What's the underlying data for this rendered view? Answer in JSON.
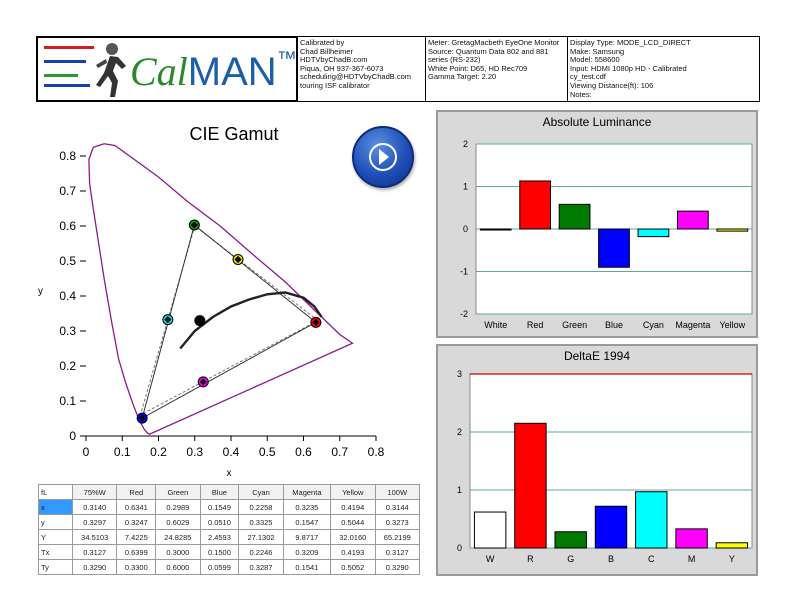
{
  "header": {
    "logo": {
      "text_a": "Cal",
      "text_b": "MAN",
      "tm": "™",
      "bar_colors": [
        "#d11f1f",
        "#1a3fb5",
        "#2a9a2a"
      ]
    },
    "info_1": [
      "Calibrated by",
      "Chad Billheimer",
      "HDTVbyChadB.com",
      "Piqua, OH 937-367-6073",
      "scheduling@HDTVbyChadB.com",
      "touring ISF calibrator"
    ],
    "info_2": [
      "Meter: GretagMacbeth EyeOne Monitor",
      "Source: Quantum Data 802 and 881",
      "series (RS-232)",
      "White Point: D65, HD Rec709",
      "Gamma Target: 2.20"
    ],
    "info_3": [
      "Display Type: MODE_LCD_DIRECT",
      "Make: Samsung",
      "Model: 558600",
      "Input: HDMI 1080p HD   -   Calibrated",
      "cy_test.cdf",
      "Viewing Distance(ft): 106",
      "Notes:"
    ]
  },
  "play_button": {
    "icon": "play-icon"
  },
  "chart_data": [
    {
      "type": "scatter",
      "title": "CIE Gamut",
      "xlabel": "x",
      "ylabel": "y",
      "xlim": [
        0,
        0.8
      ],
      "ylim": [
        0,
        0.8
      ],
      "xticks": [
        "0",
        "0.1",
        "0.2",
        "0.3",
        "0.4",
        "0.5",
        "0.6",
        "0.7",
        "0.8"
      ],
      "yticks": [
        "0",
        "0.1",
        "0.2",
        "0.3",
        "0.4",
        "0.5",
        "0.6",
        "0.7",
        "0.8"
      ],
      "locus_color": "#8b1a8b",
      "locus": [
        [
          0.175,
          0.005
        ],
        [
          0.17,
          0.008
        ],
        [
          0.16,
          0.02
        ],
        [
          0.145,
          0.05
        ],
        [
          0.13,
          0.09
        ],
        [
          0.11,
          0.15
        ],
        [
          0.09,
          0.22
        ],
        [
          0.07,
          0.33
        ],
        [
          0.05,
          0.45
        ],
        [
          0.035,
          0.55
        ],
        [
          0.02,
          0.65
        ],
        [
          0.01,
          0.72
        ],
        [
          0.008,
          0.79
        ],
        [
          0.02,
          0.825
        ],
        [
          0.05,
          0.835
        ],
        [
          0.08,
          0.83
        ],
        [
          0.12,
          0.8
        ],
        [
          0.2,
          0.74
        ],
        [
          0.28,
          0.67
        ],
        [
          0.37,
          0.6
        ],
        [
          0.47,
          0.51
        ],
        [
          0.55,
          0.44
        ],
        [
          0.62,
          0.37
        ],
        [
          0.67,
          0.32
        ],
        [
          0.7,
          0.29
        ],
        [
          0.735,
          0.265
        ]
      ],
      "target_triangle": [
        [
          0.64,
          0.33
        ],
        [
          0.3,
          0.6
        ],
        [
          0.15,
          0.06
        ]
      ],
      "measured_triangle": [
        [
          0.6341,
          0.3247
        ],
        [
          0.2989,
          0.6029
        ],
        [
          0.1549,
          0.051
        ]
      ],
      "planckian": [
        [
          0.26,
          0.25
        ],
        [
          0.3,
          0.3
        ],
        [
          0.35,
          0.34
        ],
        [
          0.4,
          0.37
        ],
        [
          0.45,
          0.39
        ],
        [
          0.5,
          0.405
        ],
        [
          0.55,
          0.41
        ],
        [
          0.6,
          0.395
        ],
        [
          0.63,
          0.37
        ],
        [
          0.65,
          0.34
        ]
      ],
      "points": [
        {
          "name": "White",
          "color": "#000000",
          "x": 0.314,
          "y": 0.3297
        },
        {
          "name": "Red",
          "color": "#ff0000",
          "x": 0.6341,
          "y": 0.3247
        },
        {
          "name": "Green",
          "color": "#00a000",
          "x": 0.2989,
          "y": 0.6029
        },
        {
          "name": "Blue",
          "color": "#0000ff",
          "x": 0.1549,
          "y": 0.051
        },
        {
          "name": "Cyan",
          "color": "#00e0e0",
          "x": 0.2258,
          "y": 0.3325
        },
        {
          "name": "Magenta",
          "color": "#ff00ff",
          "x": 0.3235,
          "y": 0.1547
        },
        {
          "name": "Yellow",
          "color": "#e0e000",
          "x": 0.4194,
          "y": 0.5044
        }
      ]
    },
    {
      "type": "bar",
      "title": "Absolute Luminance",
      "categories": [
        "White",
        "Red",
        "Green",
        "Blue",
        "Cyan",
        "Magenta",
        "Yellow"
      ],
      "values": [
        0.0,
        1.13,
        0.58,
        -0.9,
        -0.18,
        0.42,
        -0.05
      ],
      "colors": [
        "#ffffff",
        "#ff0000",
        "#007a00",
        "#0000ff",
        "#00ffff",
        "#ff00ff",
        "#ffff00"
      ],
      "ylim": [
        -2,
        2
      ],
      "yticks": [
        "-2",
        "-1",
        "0",
        "1",
        "2"
      ]
    },
    {
      "type": "bar",
      "title": "DeltaE 1994",
      "categories": [
        "W",
        "R",
        "G",
        "B",
        "C",
        "M",
        "Y"
      ],
      "values": [
        0.62,
        2.15,
        0.28,
        0.72,
        0.97,
        0.33,
        0.09
      ],
      "colors": [
        "#ffffff",
        "#ff0000",
        "#007a00",
        "#0000ff",
        "#00ffff",
        "#ff00ff",
        "#ffff00"
      ],
      "ylim": [
        0,
        3
      ],
      "yticks": [
        "0",
        "1",
        "2",
        "3"
      ],
      "threshold_color": "#cc0000"
    }
  ],
  "table": {
    "corner": "fL",
    "columns": [
      "75%W",
      "Red",
      "Green",
      "Blue",
      "Cyan",
      "Magenta",
      "Yellow",
      "100W"
    ],
    "rows": [
      {
        "label": "x",
        "cells": [
          "0.3140",
          "0.6341",
          "0.2989",
          "0.1549",
          "0.2258",
          "0.3235",
          "0.4194",
          "0.3144"
        ]
      },
      {
        "label": "y",
        "cells": [
          "0.3297",
          "0.3247",
          "0.6029",
          "0.0510",
          "0.3325",
          "0.1547",
          "0.5044",
          "0.3273"
        ]
      },
      {
        "label": "Y",
        "cells": [
          "34.5103",
          "7.4225",
          "24.8285",
          "2.4593",
          "27.1302",
          "9.8717",
          "32.0160",
          "65.2199"
        ]
      },
      {
        "label": "Tx",
        "cells": [
          "0.3127",
          "0.6399",
          "0.3000",
          "0.1500",
          "0.2246",
          "0.3209",
          "0.4193",
          "0.3127"
        ]
      },
      {
        "label": "Ty",
        "cells": [
          "0.3290",
          "0.3300",
          "0.6000",
          "0.0599",
          "0.3287",
          "0.1541",
          "0.5052",
          "0.3290"
        ]
      }
    ]
  }
}
